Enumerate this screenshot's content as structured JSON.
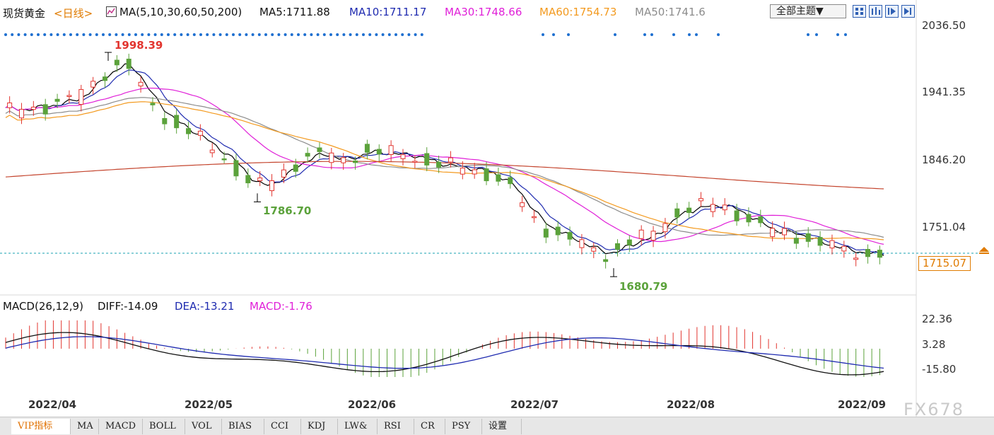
{
  "header": {
    "symbol": "现货黄金",
    "period": "<日线>",
    "ma_label": "MA(5,10,30,60,50,200)",
    "ma5": "MA5:1711.88",
    "ma10": "MA10:1711.17",
    "ma30": "MA30:1748.66",
    "ma60": "MA60:1754.73",
    "ma50": "MA50:1741.6"
  },
  "toolbar": {
    "theme_select": "全部主题▼",
    "buttons": [
      "grid-icon",
      "bar-chart-icon",
      "play-icon",
      "step-forward-icon"
    ]
  },
  "price_axis": [
    "2036.50",
    "1941.35",
    "1846.20",
    "1751.04"
  ],
  "current_price": "1715.07",
  "annotations": {
    "high": "1998.39",
    "low1": "1786.70",
    "low2": "1680.79"
  },
  "macd_header": {
    "label": "MACD(26,12,9)",
    "diff": "DIFF:-14.09",
    "dea": "DEA:-13.21",
    "macd": "MACD:-1.76"
  },
  "macd_axis": [
    "22.36",
    "3.28",
    "-15.80"
  ],
  "date_axis": [
    "2022/04",
    "2022/05",
    "2022/06",
    "2022/07",
    "2022/08",
    "2022/09"
  ],
  "tabs": [
    "VIP指标",
    "MA",
    "MACD",
    "BOLL",
    "VOL",
    "BIAS",
    "CCI",
    "KDJ",
    "LW&",
    "RSI",
    "CR",
    "PSY",
    "设置"
  ],
  "active_tab": "VIP指标",
  "watermark": "FX678",
  "colors": {
    "up": "#e2352f",
    "down": "#5ba23b",
    "ma5": "#000000",
    "ma10": "#1f2bb0",
    "ma30": "#e020d8",
    "ma60": "#f39a1f",
    "ma50": "#8c8c8c",
    "ma200": "#c4452e",
    "accent": "#e07b00",
    "dots": "#1e6fd0",
    "dashed": "#1aa0b0"
  },
  "chart_data": {
    "type": "candlestick",
    "x": [
      "2022/04",
      "2022/05",
      "2022/06",
      "2022/07",
      "2022/08",
      "2022/09"
    ],
    "y_ticks": [
      2036.5,
      1941.35,
      1846.2,
      1751.04
    ],
    "current_price": 1715.07,
    "high": 1998.39,
    "lows": [
      1786.7,
      1680.79
    ],
    "ma": {
      "MA5": 1711.88,
      "MA10": 1711.17,
      "MA30": 1748.66,
      "MA60": 1754.73,
      "MA50": 1741.6
    },
    "macd": {
      "DIFF": -14.09,
      "DEA": -13.21,
      "MACD": -1.76,
      "y_ticks": [
        22.36,
        3.28,
        -15.8
      ]
    }
  }
}
